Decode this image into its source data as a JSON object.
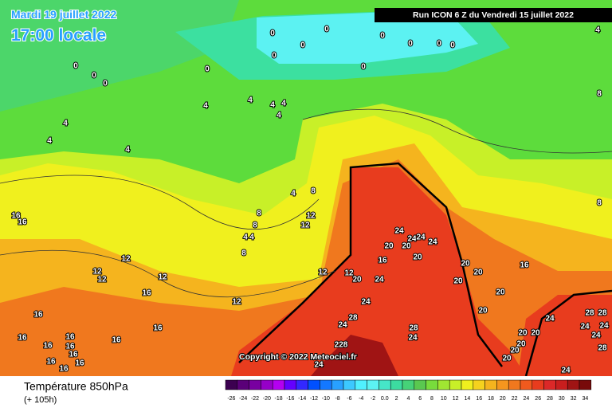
{
  "header": {
    "date": "Mardi 19 juillet 2022",
    "time": "17:00 locale",
    "run": "Run ICON 6 Z du Vendredi 15 juillet 2022"
  },
  "copyright": "Copyright © 2022 Meteociel.fr",
  "footer": {
    "title": "Température 850hPa",
    "lead": "(+ 105h)"
  },
  "scale": {
    "labels": [
      "-26",
      "-24",
      "-22",
      "-20",
      "-18",
      "-16",
      "-14",
      "-12",
      "-10",
      "-8",
      "-6",
      "-4",
      "-2",
      "0.0",
      "2",
      "4",
      "6",
      "8",
      "10",
      "12",
      "14",
      "16",
      "18",
      "20",
      "22",
      "24",
      "26",
      "28",
      "30",
      "32",
      "34"
    ],
    "colors": [
      "#3c0050",
      "#5a0078",
      "#7800a0",
      "#9600c8",
      "#b400f0",
      "#6400ff",
      "#3228ff",
      "#0050ff",
      "#1478ff",
      "#28a0ff",
      "#3cc8ff",
      "#50f0ff",
      "#5cf2f2",
      "#46e6c8",
      "#3cdca0",
      "#46d278",
      "#5ac850",
      "#78dc3c",
      "#a0e632",
      "#c8f028",
      "#f0f01e",
      "#f5d21e",
      "#f5b41e",
      "#f5961e",
      "#f0781e",
      "#f05a1e",
      "#e83c1e",
      "#dc2828",
      "#c81e1e",
      "#a01414",
      "#780a0a"
    ]
  },
  "contours": {
    "labels": [
      "0",
      "0",
      "0",
      "0",
      "0",
      "0",
      "0",
      "0",
      "0",
      "0",
      "0",
      "0",
      "0",
      "4",
      "4",
      "4",
      "4",
      "4",
      "4",
      "4",
      "4",
      "4",
      "4",
      "8",
      "8",
      "8",
      "8",
      "4",
      "4",
      "8",
      "8",
      "12",
      "12",
      "12",
      "12",
      "12",
      "12",
      "12",
      "12",
      "12",
      "16",
      "16",
      "16",
      "16",
      "16",
      "16",
      "16",
      "16",
      "16",
      "16",
      "16",
      "16",
      "16",
      "16",
      "16",
      "16",
      "20",
      "20",
      "20",
      "20",
      "20",
      "20",
      "20",
      "20",
      "20",
      "20",
      "20",
      "20",
      "20",
      "20",
      "24",
      "24",
      "24",
      "24",
      "24",
      "24",
      "24",
      "24",
      "24",
      "24",
      "24",
      "24",
      "24",
      "28",
      "28",
      "28",
      "28",
      "28",
      "228",
      "24"
    ]
  }
}
